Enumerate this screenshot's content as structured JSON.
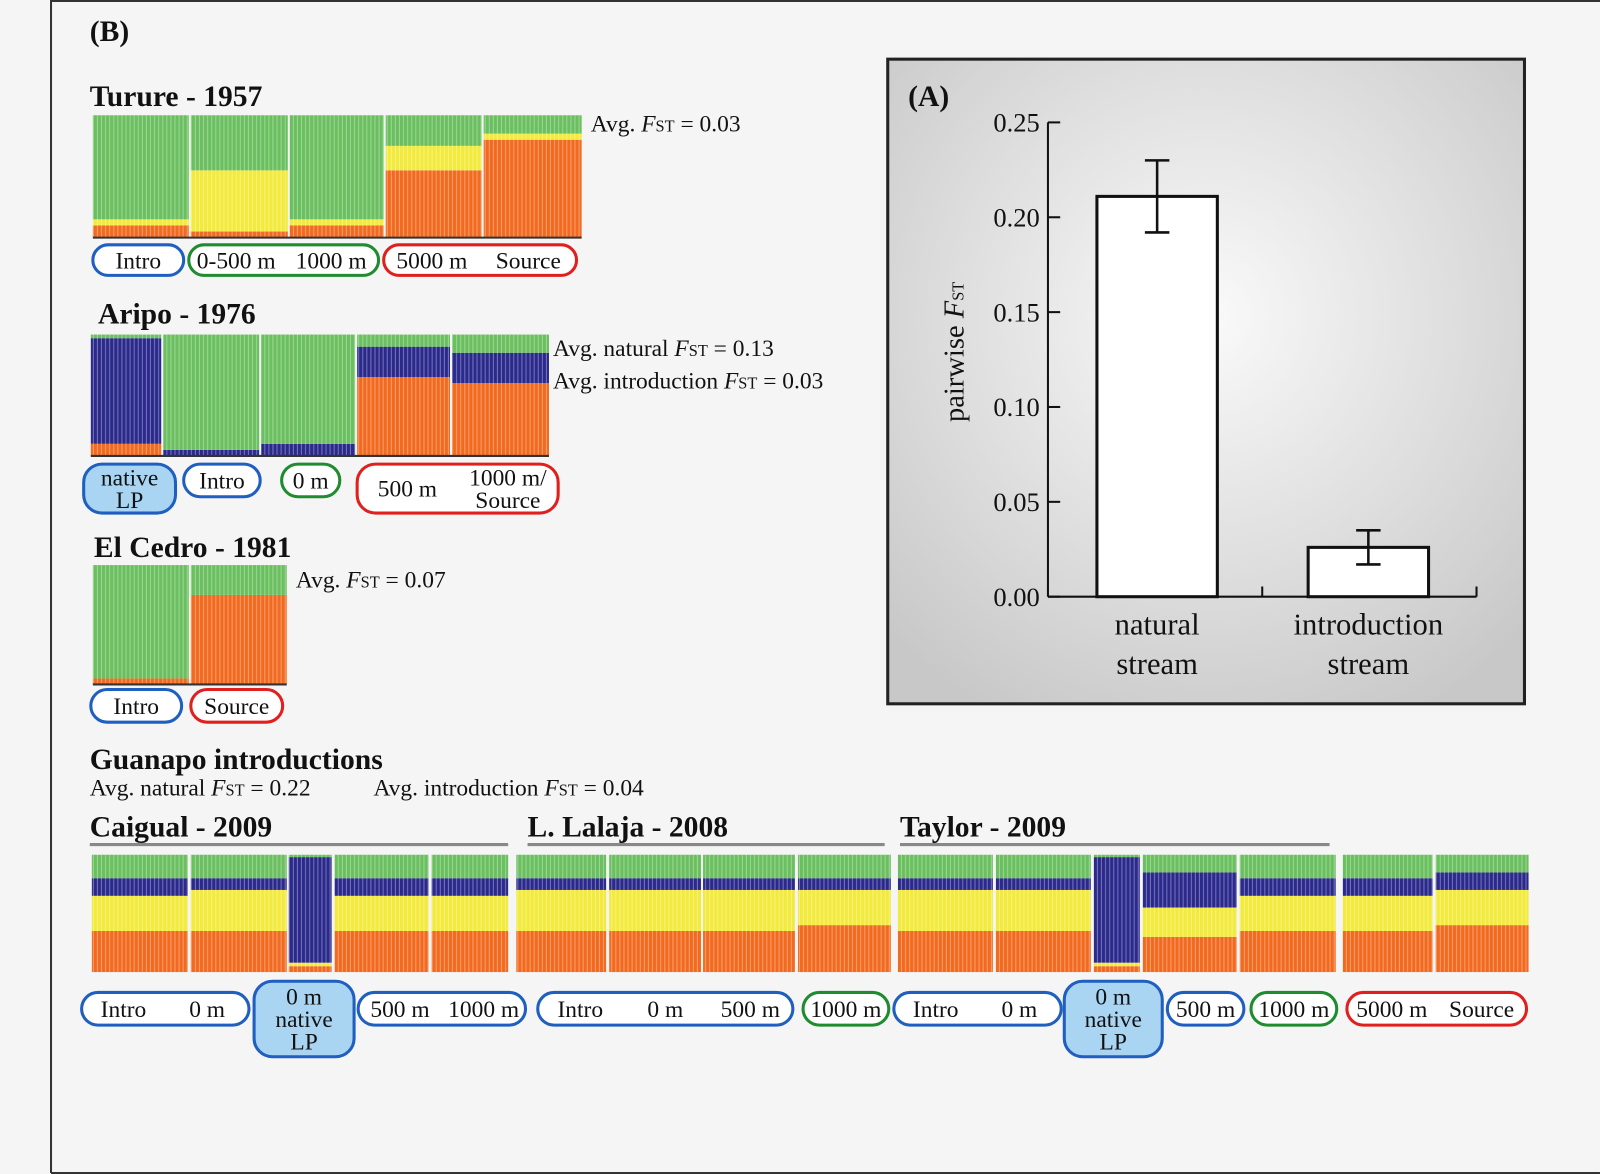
{
  "chart_data": {
    "type": "bar",
    "panel_label": "(A)",
    "categories": [
      [
        "natural",
        "stream"
      ],
      [
        "introduction",
        "stream"
      ]
    ],
    "values": [
      0.211,
      0.026
    ],
    "errors": [
      0.019,
      0.009
    ],
    "color": "#ffffff",
    "ylim": [
      0,
      0.25
    ],
    "yticks": [
      {
        "value": 0,
        "label": "0.00"
      },
      {
        "value": 0.05,
        "label": "0.05"
      },
      {
        "value": 0.1,
        "label": "0.10"
      },
      {
        "value": 0.15,
        "label": "0.15"
      },
      {
        "value": 0.2,
        "label": "0.20"
      },
      {
        "value": 0.25,
        "label": "0.25"
      }
    ],
    "ylabel": {
      "pre": "pairwise ",
      "stat": "F",
      "sub": "ST"
    }
  },
  "panel_b": {
    "panel_label": "(B)",
    "cluster_colors": [
      "#6abf5f",
      "#f2ea3c",
      "#f26a1f",
      "#2b2a8c"
    ],
    "sections": [
      {
        "title": "Turure - 1957",
        "notes": [
          {
            "pre": "Avg. ",
            "stat": "F",
            "sub": "ST",
            "post": " = 0.03"
          }
        ],
        "blocks": [
          [
            0.85,
            0.05,
            0.1,
            0
          ],
          [
            0.45,
            0.5,
            0.05,
            0
          ],
          [
            0.85,
            0.05,
            0.1,
            0
          ],
          [
            0.25,
            0.2,
            0.55,
            0
          ],
          [
            0.15,
            0.05,
            0.8,
            0
          ]
        ],
        "groups": [
          {
            "color": "#1f5fbf",
            "filled": false,
            "labels": [
              [
                "Intro"
              ]
            ]
          },
          {
            "color": "#1e8c2f",
            "filled": false,
            "labels": [
              [
                "0-500 m"
              ],
              [
                "1000 m"
              ]
            ]
          },
          {
            "color": "#e0201f",
            "filled": false,
            "labels": [
              [
                "5000 m"
              ],
              [
                "Source"
              ]
            ]
          }
        ]
      },
      {
        "title": "Aripo - 1976",
        "notes": [
          {
            "pre": "Avg. natural ",
            "stat": "F",
            "sub": "ST",
            "post": " = 0.13"
          },
          {
            "pre": "Avg. introduction ",
            "stat": "F",
            "sub": "ST",
            "post": " = 0.03"
          }
        ],
        "blocks": [
          [
            0.03,
            0,
            0.1,
            0.87
          ],
          [
            0.95,
            0,
            0,
            0.05
          ],
          [
            0.9,
            0,
            0,
            0.1
          ],
          [
            0.1,
            0,
            0.65,
            0.25
          ],
          [
            0.15,
            0,
            0.6,
            0.25
          ]
        ],
        "groups": [
          {
            "color": "#1f5fbf",
            "filled": true,
            "labels": [
              [
                "native",
                "LP"
              ]
            ]
          },
          {
            "color": "#1f5fbf",
            "filled": false,
            "labels": [
              [
                "Intro"
              ]
            ]
          },
          {
            "color": "#1e8c2f",
            "filled": false,
            "labels": [
              [
                "0 m"
              ]
            ]
          },
          {
            "color": "#e0201f",
            "filled": false,
            "labels": [
              [
                "500 m"
              ],
              [
                "1000 m/",
                "Source"
              ]
            ]
          }
        ]
      },
      {
        "title": "El Cedro - 1981",
        "notes": [
          {
            "pre": "Avg. ",
            "stat": "F",
            "sub": "ST",
            "post": " = 0.07"
          }
        ],
        "blocks": [
          [
            0.95,
            0,
            0.05,
            0
          ],
          [
            0.25,
            0,
            0.75,
            0
          ]
        ],
        "groups": [
          {
            "color": "#1f5fbf",
            "filled": false,
            "labels": [
              [
                "Intro"
              ]
            ]
          },
          {
            "color": "#e0201f",
            "filled": false,
            "labels": [
              [
                "Source"
              ]
            ]
          }
        ]
      },
      {
        "title": "Guanapo introductions",
        "notes": [
          {
            "pre": "Avg. natural ",
            "stat": "F",
            "sub": "ST",
            "post": " = 0.22"
          },
          {
            "pre": "Avg. introduction ",
            "stat": "F",
            "sub": "ST",
            "post": " = 0.04"
          }
        ],
        "streams": [
          "Caigual - 2009",
          "L. Lalaja - 2008",
          "Taylor - 2009"
        ],
        "blocks": [
          [
            0.2,
            0.3,
            0.35,
            0.15
          ],
          [
            0.2,
            0.35,
            0.35,
            0.1
          ],
          [
            0.02,
            0.03,
            0.05,
            0.9
          ],
          [
            0.2,
            0.3,
            0.35,
            0.15
          ],
          [
            0.2,
            0.3,
            0.35,
            0.15
          ],
          [
            0.2,
            0.35,
            0.35,
            0.1
          ],
          [
            0.2,
            0.35,
            0.35,
            0.1
          ],
          [
            0.2,
            0.35,
            0.35,
            0.1
          ],
          [
            0.2,
            0.3,
            0.4,
            0.1
          ],
          [
            0.2,
            0.35,
            0.35,
            0.1
          ],
          [
            0.2,
            0.35,
            0.35,
            0.1
          ],
          [
            0.02,
            0.03,
            0.05,
            0.9
          ],
          [
            0.15,
            0.25,
            0.3,
            0.3
          ],
          [
            0.2,
            0.3,
            0.35,
            0.15
          ],
          [
            0.2,
            0.3,
            0.35,
            0.15
          ],
          [
            0.15,
            0.3,
            0.4,
            0.15
          ]
        ],
        "groups": [
          {
            "color": "#1f5fbf",
            "filled": false,
            "labels": [
              [
                "Intro"
              ],
              [
                "0 m"
              ]
            ]
          },
          {
            "color": "#1f5fbf",
            "filled": true,
            "labels": [
              [
                "0 m",
                "native",
                "LP"
              ]
            ]
          },
          {
            "color": "#1f5fbf",
            "filled": false,
            "labels": [
              [
                "500 m"
              ],
              [
                "1000 m"
              ]
            ]
          },
          {
            "color": "#1f5fbf",
            "filled": false,
            "labels": [
              [
                "Intro"
              ],
              [
                "0 m"
              ],
              [
                "500 m"
              ]
            ]
          },
          {
            "color": "#1e8c2f",
            "filled": false,
            "labels": [
              [
                "1000 m"
              ]
            ]
          },
          {
            "color": "#1f5fbf",
            "filled": false,
            "labels": [
              [
                "Intro"
              ],
              [
                "0 m"
              ]
            ]
          },
          {
            "color": "#1f5fbf",
            "filled": true,
            "labels": [
              [
                "0 m",
                "native",
                "LP"
              ]
            ]
          },
          {
            "color": "#1f5fbf",
            "filled": false,
            "labels": [
              [
                "500 m"
              ]
            ]
          },
          {
            "color": "#1e8c2f",
            "filled": false,
            "labels": [
              [
                "1000 m"
              ]
            ]
          },
          {
            "color": "#e0201f",
            "filled": false,
            "labels": [
              [
                "5000 m"
              ],
              [
                "Source"
              ]
            ]
          }
        ]
      }
    ]
  }
}
